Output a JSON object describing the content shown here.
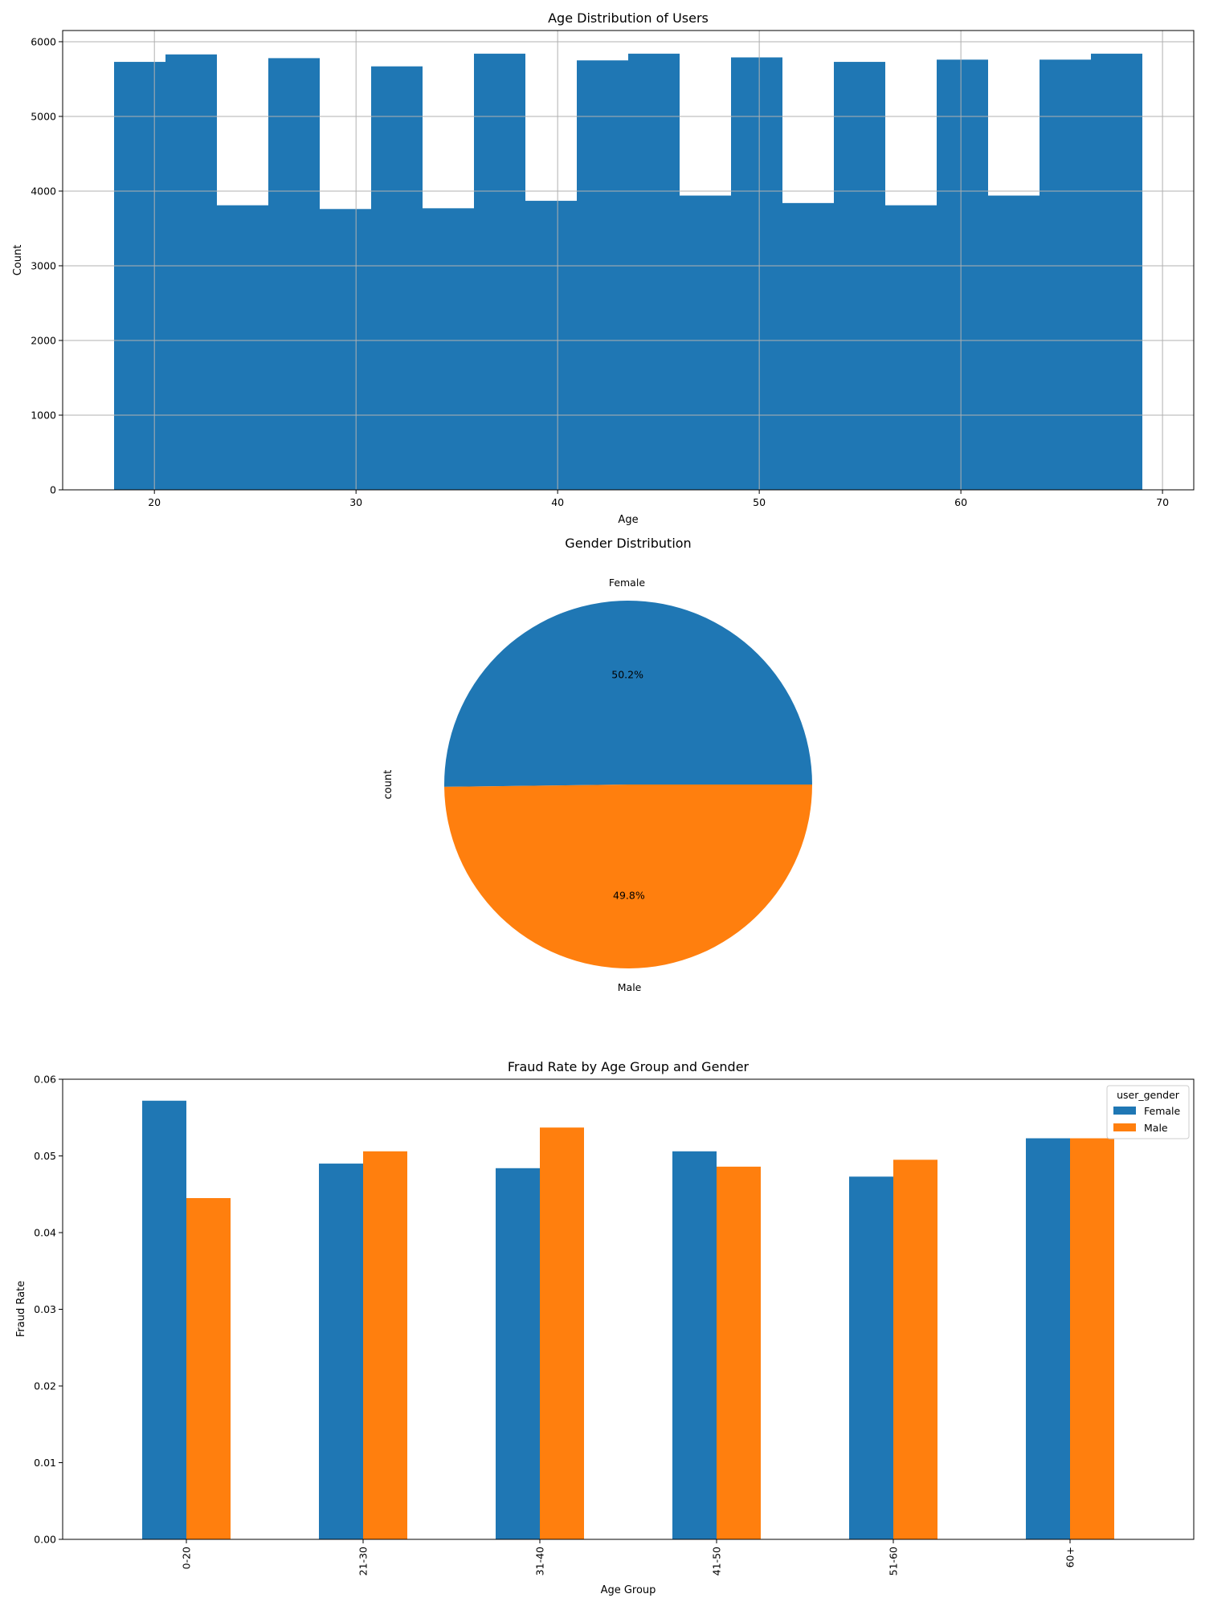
{
  "colors": {
    "blue": "#1f77b4",
    "orange": "#ff7f0e",
    "grid": "#b0b0b0"
  },
  "chart_data": [
    {
      "type": "bar",
      "title": "Age Distribution of Users",
      "xlabel": "Age",
      "ylabel": "Count",
      "xlim": [
        15.45,
        71.55
      ],
      "ylim": [
        0,
        6150
      ],
      "xticks": [
        20,
        30,
        40,
        50,
        60,
        70
      ],
      "yticks": [
        0,
        1000,
        2000,
        3000,
        4000,
        5000,
        6000
      ],
      "grid": true,
      "bins": [
        {
          "x0": 18.0,
          "x1": 20.55,
          "value": 5730
        },
        {
          "x0": 20.55,
          "x1": 23.1,
          "value": 5830
        },
        {
          "x0": 23.1,
          "x1": 25.65,
          "value": 3810
        },
        {
          "x0": 25.65,
          "x1": 28.2,
          "value": 5780
        },
        {
          "x0": 28.2,
          "x1": 30.75,
          "value": 3760
        },
        {
          "x0": 30.75,
          "x1": 33.3,
          "value": 5670
        },
        {
          "x0": 33.3,
          "x1": 35.85,
          "value": 3770
        },
        {
          "x0": 35.85,
          "x1": 38.4,
          "value": 5840
        },
        {
          "x0": 38.4,
          "x1": 40.95,
          "value": 3870
        },
        {
          "x0": 40.95,
          "x1": 43.5,
          "value": 5750
        },
        {
          "x0": 43.5,
          "x1": 46.05,
          "value": 5840
        },
        {
          "x0": 46.05,
          "x1": 48.6,
          "value": 3940
        },
        {
          "x0": 48.6,
          "x1": 51.15,
          "value": 5790
        },
        {
          "x0": 51.15,
          "x1": 53.7,
          "value": 3840
        },
        {
          "x0": 53.7,
          "x1": 56.25,
          "value": 5730
        },
        {
          "x0": 56.25,
          "x1": 58.8,
          "value": 3810
        },
        {
          "x0": 58.8,
          "x1": 61.35,
          "value": 5760
        },
        {
          "x0": 61.35,
          "x1": 63.9,
          "value": 3940
        },
        {
          "x0": 63.9,
          "x1": 66.45,
          "value": 5760
        },
        {
          "x0": 66.45,
          "x1": 69.0,
          "value": 5840
        }
      ]
    },
    {
      "type": "pie",
      "title": "Gender Distribution",
      "ylabel": "count",
      "slices": [
        {
          "label": "Female",
          "value": 50.2,
          "pct_label": "50.2%",
          "color": "#1f77b4"
        },
        {
          "label": "Male",
          "value": 49.8,
          "pct_label": "49.8%",
          "color": "#ff7f0e"
        }
      ]
    },
    {
      "type": "bar",
      "title": "Fraud Rate by Age Group and Gender",
      "xlabel": "Age Group",
      "ylabel": "Fraud Rate",
      "ylim": [
        0,
        0.06
      ],
      "yticks": [
        0.0,
        0.01,
        0.02,
        0.03,
        0.04,
        0.05,
        0.06
      ],
      "grid": false,
      "legend_title": "user_gender",
      "legend_position": "top-right",
      "categories": [
        "0-20",
        "21-30",
        "31-40",
        "41-50",
        "51-60",
        "60+"
      ],
      "series": [
        {
          "name": "Female",
          "color": "#1f77b4",
          "values": [
            0.0572,
            0.049,
            0.0484,
            0.0506,
            0.0473,
            0.0523
          ]
        },
        {
          "name": "Male",
          "color": "#ff7f0e",
          "values": [
            0.0445,
            0.0506,
            0.0537,
            0.0486,
            0.0495,
            0.0523
          ]
        }
      ]
    }
  ]
}
